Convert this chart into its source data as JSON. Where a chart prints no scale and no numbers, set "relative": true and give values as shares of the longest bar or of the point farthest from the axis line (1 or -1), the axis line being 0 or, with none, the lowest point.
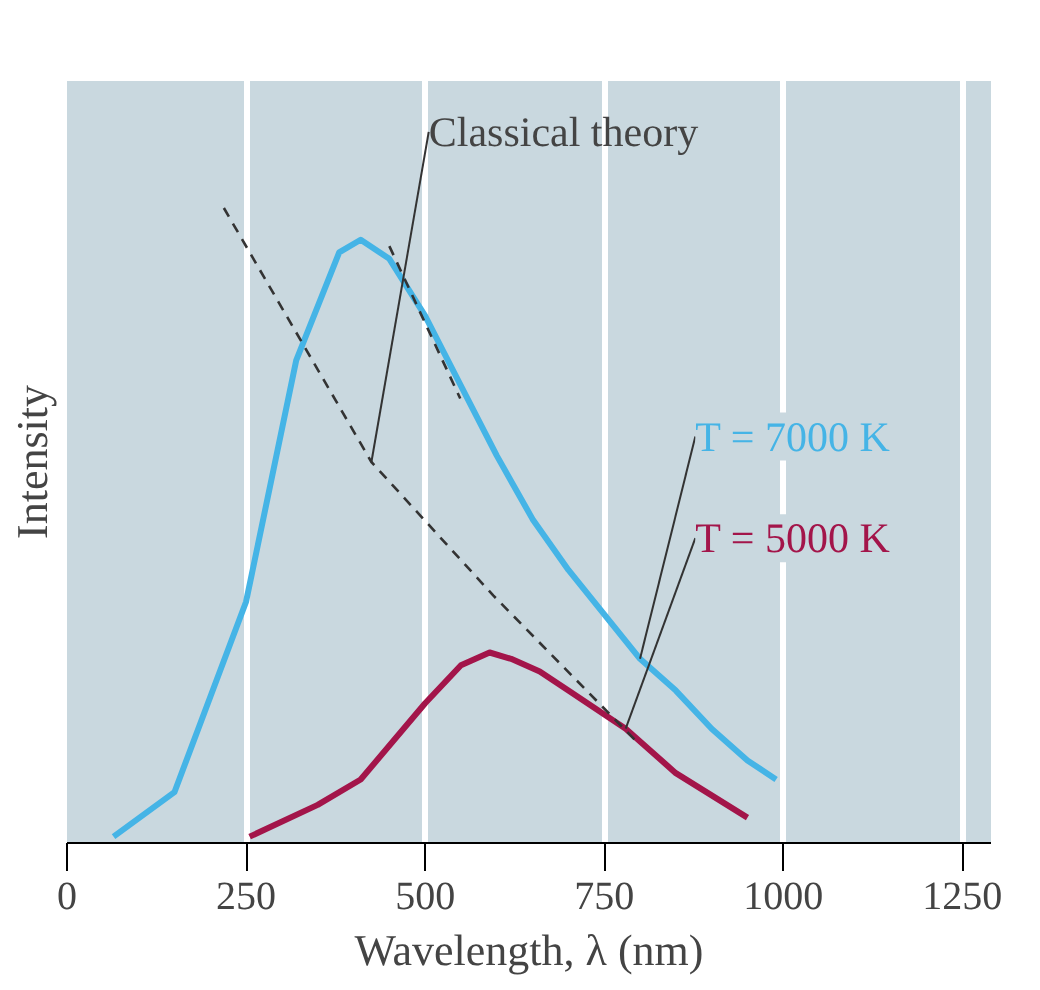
{
  "chart_data": {
    "type": "line",
    "relative": true,
    "xlabel": "Wavelength, λ (nm)",
    "ylabel": "Intensity",
    "xlim": [
      0,
      1290
    ],
    "xticks": [
      0,
      250,
      500,
      750,
      1000,
      1250
    ],
    "grid": "x",
    "marker": "none",
    "series": [
      {
        "name": "T = 7000 K",
        "color": "#45b4e6",
        "x": [
          65,
          150,
          250,
          320,
          380,
          410,
          450,
          500,
          550,
          600,
          650,
          700,
          750,
          800,
          850,
          900,
          950,
          990
        ],
        "values": [
          0.01,
          0.08,
          0.38,
          0.76,
          0.93,
          0.95,
          0.92,
          0.83,
          0.72,
          0.61,
          0.51,
          0.43,
          0.36,
          0.29,
          0.24,
          0.18,
          0.13,
          0.1
        ]
      },
      {
        "name": "T = 5000 K",
        "color": "#a3154a",
        "x": [
          255,
          350,
          410,
          500,
          550,
          590,
          620,
          660,
          700,
          780,
          850,
          950
        ],
        "values": [
          0.01,
          0.06,
          0.1,
          0.22,
          0.28,
          0.3,
          0.29,
          0.27,
          0.24,
          0.18,
          0.11,
          0.04
        ]
      },
      {
        "color": "#333333",
        "line_style": "dashed",
        "x": [
          219,
          425,
          595,
          795
        ],
        "values": [
          1.0,
          0.6,
          0.39,
          0.16
        ]
      },
      {
        "color": "#333333",
        "line_style": "dashed",
        "x": [
          450,
          549
        ],
        "values": [
          0.94,
          0.7
        ]
      }
    ],
    "annotations": [
      {
        "text": "Classical theory",
        "x": 425,
        "y": 0.6
      }
    ]
  }
}
